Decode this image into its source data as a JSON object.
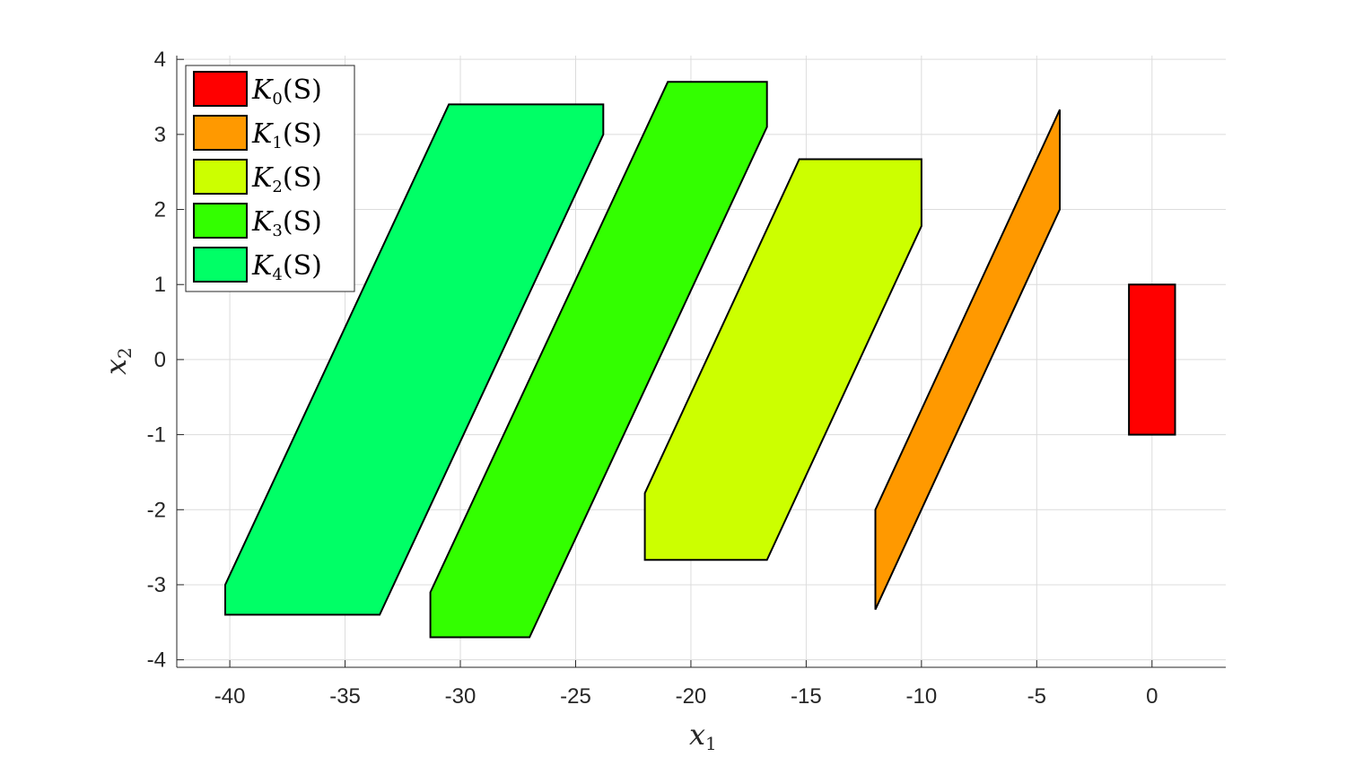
{
  "chart_data": {
    "type": "area",
    "xlabel": "x",
    "xlabel_sub": "1",
    "ylabel": "x",
    "ylabel_sub": "2",
    "xlim": [
      -42.3,
      3.2
    ],
    "ylim": [
      -4.1,
      4.05
    ],
    "xticks": [
      -40,
      -35,
      -30,
      -25,
      -20,
      -15,
      -10,
      -5,
      0
    ],
    "yticks": [
      -4,
      -3,
      -2,
      -1,
      0,
      1,
      2,
      3,
      4
    ],
    "grid": true,
    "legend_position": "top-left",
    "series": [
      {
        "name": "K0(S)",
        "legend_main": "K",
        "legend_sub": "0",
        "legend_arg": "(S)",
        "color": "#ff0000",
        "polygon": [
          [
            -1,
            -1
          ],
          [
            1,
            -1
          ],
          [
            1,
            1
          ],
          [
            -1,
            1
          ]
        ]
      },
      {
        "name": "K1(S)",
        "legend_main": "K",
        "legend_sub": "1",
        "legend_arg": "(S)",
        "color": "#ff9900",
        "polygon": [
          [
            -12,
            -3.33
          ],
          [
            -4,
            2
          ],
          [
            -4,
            3.33
          ],
          [
            -12,
            -2
          ]
        ]
      },
      {
        "name": "K2(S)",
        "legend_main": "K",
        "legend_sub": "2",
        "legend_arg": "(S)",
        "color": "#ccff00",
        "polygon": [
          [
            -22,
            -1.78
          ],
          [
            -22,
            -2.67
          ],
          [
            -16.7,
            -2.67
          ],
          [
            -10,
            1.78
          ],
          [
            -10,
            2.67
          ],
          [
            -15.3,
            2.67
          ]
        ]
      },
      {
        "name": "K3(S)",
        "legend_main": "K",
        "legend_sub": "3",
        "legend_arg": "(S)",
        "color": "#33ff00",
        "polygon": [
          [
            -31.3,
            -3.1
          ],
          [
            -31.3,
            -3.7
          ],
          [
            -27,
            -3.7
          ],
          [
            -16.7,
            3.1
          ],
          [
            -16.7,
            3.7
          ],
          [
            -21,
            3.7
          ]
        ]
      },
      {
        "name": "K4(S)",
        "legend_main": "K",
        "legend_sub": "4",
        "legend_arg": "(S)",
        "color": "#00ff66",
        "polygon": [
          [
            -40.2,
            -3
          ],
          [
            -40.2,
            -3.4
          ],
          [
            -33.5,
            -3.4
          ],
          [
            -23.8,
            3
          ],
          [
            -23.8,
            3.4
          ],
          [
            -30.5,
            3.4
          ]
        ]
      }
    ]
  }
}
